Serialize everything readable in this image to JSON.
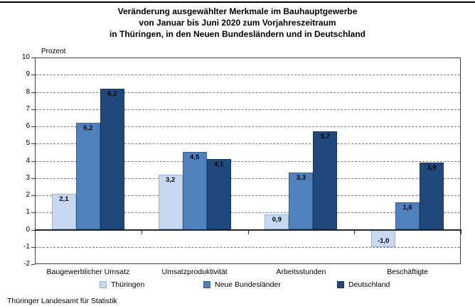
{
  "chart_data": {
    "type": "bar",
    "title_lines": [
      "Veränderung ausgewählter Merkmale im Bauhauptgewerbe",
      "von Januar bis Juni 2020 zum Vorjahreszeitraum",
      "in Thüringen, in den Neuen Bundesländern und in Deutschland"
    ],
    "ylabel": "Prozent",
    "ylim": [
      -2,
      10
    ],
    "ytick_step": 1,
    "grid": "horizontal-dashed",
    "legend_position": "bottom",
    "value_label_format": "one-decimal-comma",
    "categories": [
      "Baugewerblicher Umsatz",
      "Umsatzproduktivität",
      "Arbeitsstunden",
      "Beschäftigte"
    ],
    "series": [
      {
        "name": "Thüringen",
        "color": "#C6D9F1",
        "border_color": "#95B3D7",
        "values": [
          2.1,
          3.2,
          0.9,
          -1.0
        ]
      },
      {
        "name": "Neue Bundesländer",
        "color": "#4F81BD",
        "border_color": "#36618E",
        "values": [
          6.2,
          4.5,
          3.3,
          1.6
        ]
      },
      {
        "name": "Deutschland",
        "color": "#1F497D",
        "border_color": "#16365C",
        "values": [
          8.2,
          4.1,
          5.7,
          3.9
        ]
      }
    ]
  },
  "footer": {
    "text": "Thüringer Landesamt für Statistik"
  }
}
